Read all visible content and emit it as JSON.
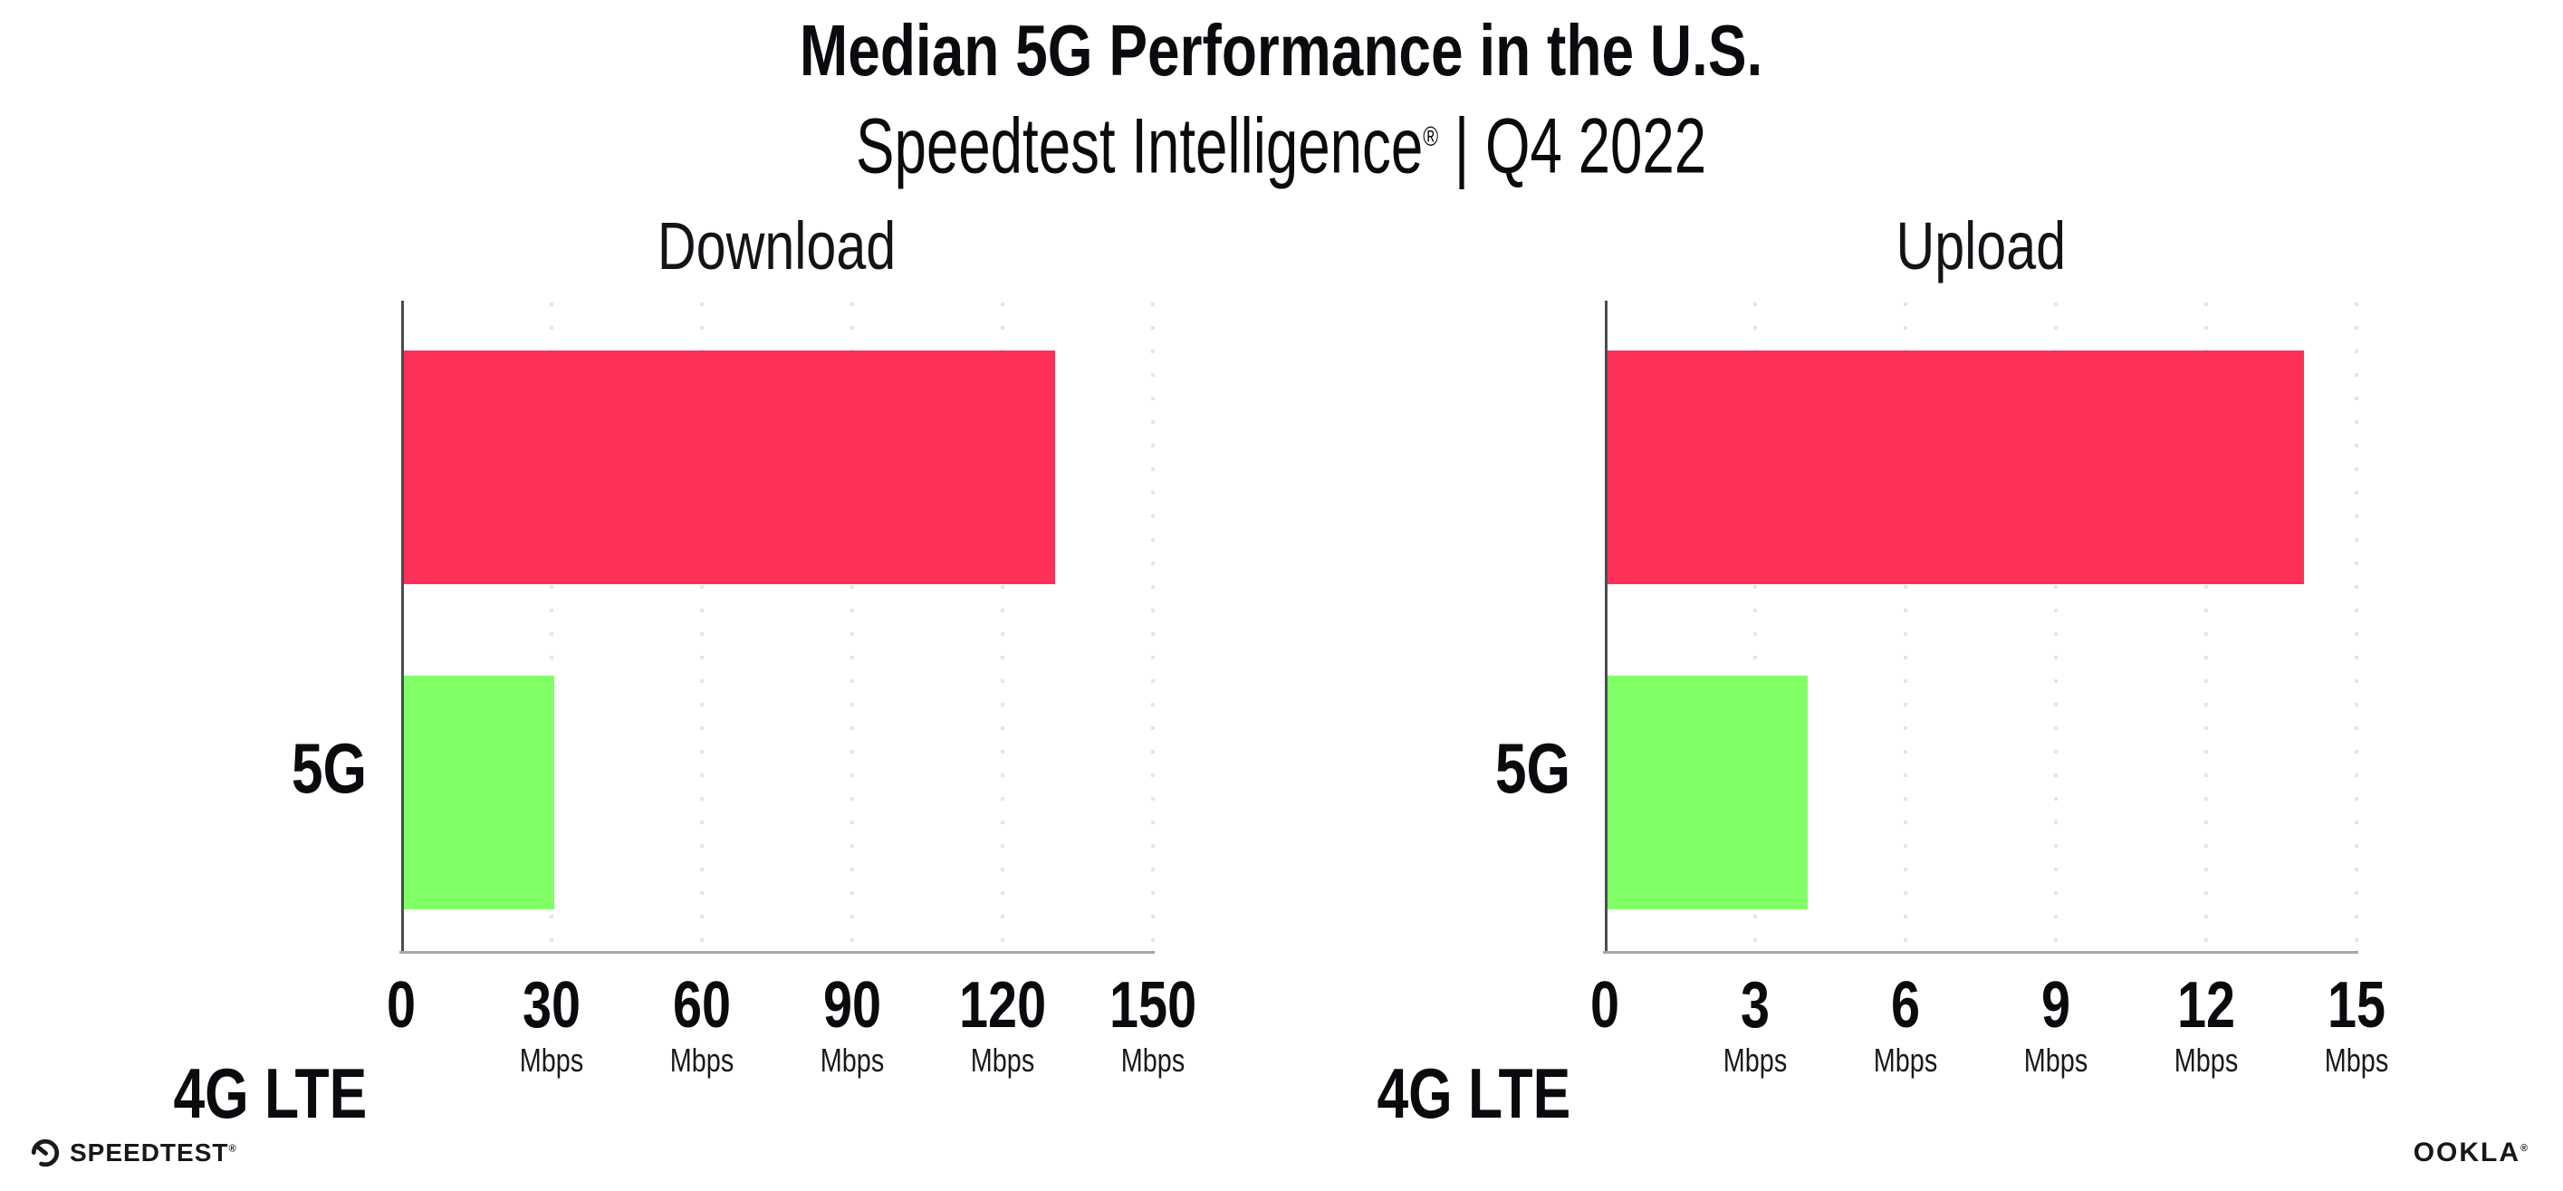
{
  "header": {
    "title": "Median 5G Performance in the U.S.",
    "subtitle": {
      "brand": "Speedtest Intelligence",
      "reg_mark": "®",
      "separator": " | ",
      "period": "Q4 2022"
    }
  },
  "chart_data": [
    {
      "type": "bar",
      "orientation": "horizontal",
      "title": "Download",
      "categories": [
        "5G",
        "4G LTE"
      ],
      "values": [
        130,
        30
      ],
      "unit": "Mbps",
      "xlim": [
        0,
        150
      ],
      "tick_labels": [
        "0",
        "30",
        "60",
        "90",
        "120",
        "150"
      ],
      "tick_units": [
        "",
        "Mbps",
        "Mbps",
        "Mbps",
        "Mbps",
        "Mbps"
      ],
      "colors": [
        "#ff3058",
        "#80ff66"
      ],
      "grid": "vertical-dotted",
      "legend": "none"
    },
    {
      "type": "bar",
      "orientation": "horizontal",
      "title": "Upload",
      "categories": [
        "5G",
        "4G LTE"
      ],
      "values": [
        13.9,
        4
      ],
      "unit": "Mbps",
      "xlim": [
        0,
        15
      ],
      "tick_labels": [
        "0",
        "3",
        "6",
        "9",
        "12",
        "15"
      ],
      "tick_units": [
        "",
        "Mbps",
        "Mbps",
        "Mbps",
        "Mbps",
        "Mbps"
      ],
      "colors": [
        "#ff3058",
        "#80ff66"
      ],
      "grid": "vertical-dotted",
      "legend": "none"
    }
  ],
  "colors": {
    "bar_5g_pink": "#ff3058",
    "bar_4g_green": "#80ff66",
    "axis_left": "#4b4b54",
    "axis_bottom": "#a6a6ae",
    "gridline": "#e4e4ee",
    "text": "#0b0b0f"
  },
  "footer": {
    "speedtest": {
      "label": "SPEEDTEST",
      "mark": "®"
    },
    "ookla": {
      "label": "OOKLA",
      "mark": "®"
    }
  }
}
